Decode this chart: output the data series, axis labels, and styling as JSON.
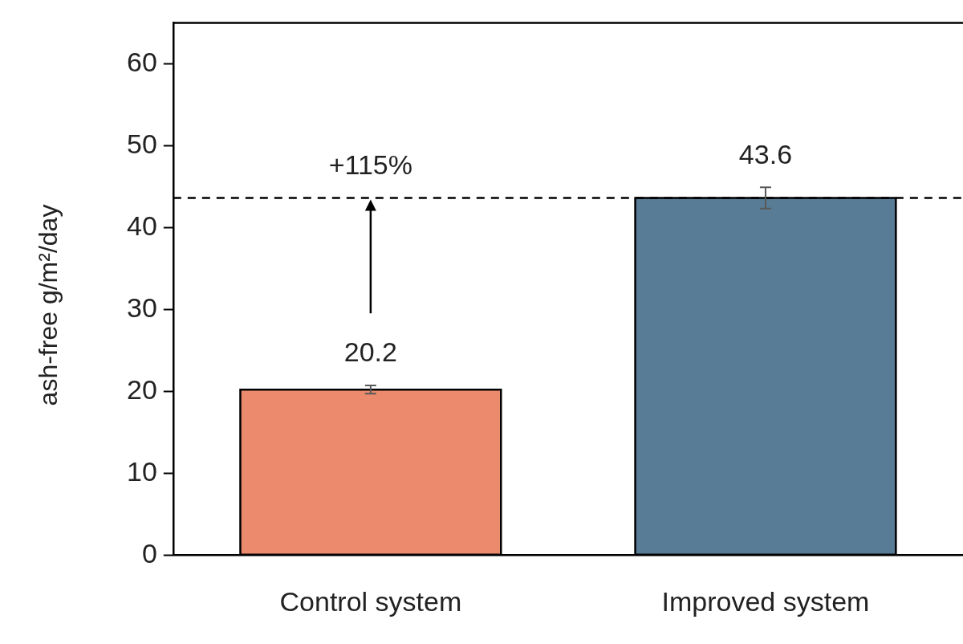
{
  "chart_data": {
    "type": "bar",
    "ylabel": "ash-free g/m²/day",
    "categories": [
      "Control system",
      "Improved system"
    ],
    "values": [
      20.2,
      43.6
    ],
    "colors": [
      "#ec8a6d",
      "#587c96"
    ],
    "errors": [
      0.5,
      1.3
    ],
    "data_labels": true,
    "ylim": [
      0,
      65
    ],
    "yticks": [
      0,
      10,
      20,
      30,
      40,
      50,
      60
    ],
    "grid": false,
    "legend": false,
    "ref_lines": [
      {
        "axis": "y",
        "value": 43.6,
        "color": "#000000",
        "line_style": "dashed"
      }
    ],
    "annotations": [
      "+115%"
    ]
  }
}
